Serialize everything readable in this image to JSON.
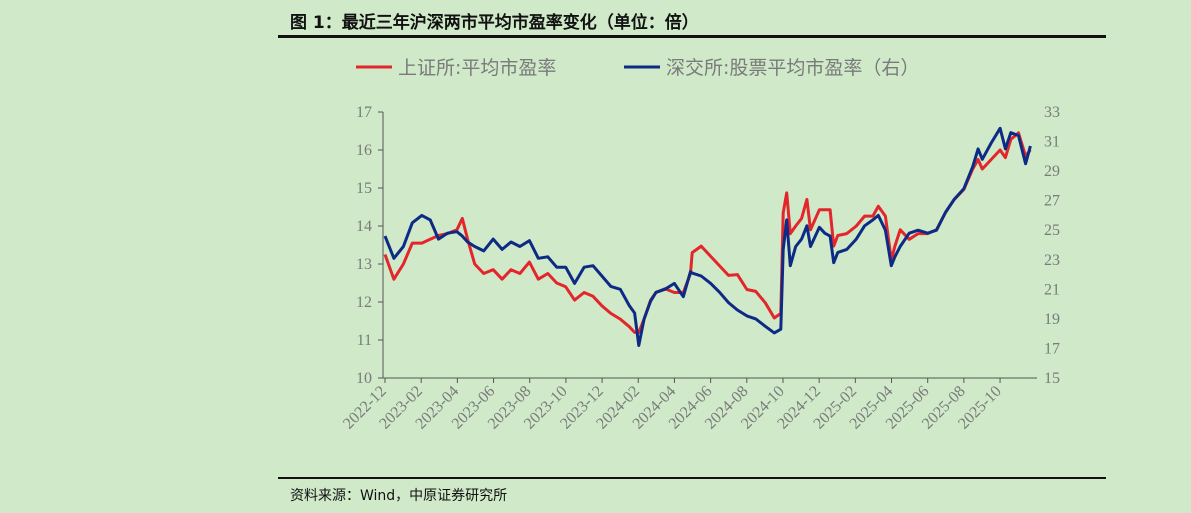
{
  "title": "图 1：最近三年沪深两市平均市盈率变化（单位：倍）",
  "source": "资料来源：Wind，中原证券研究所",
  "colors": {
    "red": "#e3262b",
    "blue": "#0d2b85"
  },
  "chart_data": {
    "type": "line",
    "title": "图 1：最近三年沪深两市平均市盈率变化（单位：倍）",
    "x_tick_labels": [
      "2022-12",
      "2023-02",
      "2023-04",
      "2023-06",
      "2023-08",
      "2023-10",
      "2023-12",
      "2024-02",
      "2024-04",
      "2024-06",
      "2024-08",
      "2024-10",
      "2024-12",
      "2025-02",
      "2025-04",
      "2025-06",
      "2025-08",
      "2025-10"
    ],
    "y_left": {
      "range": [
        10,
        17
      ],
      "ticks": [
        "10",
        "11",
        "12",
        "13",
        "14",
        "15",
        "16",
        "17"
      ]
    },
    "y_right": {
      "range": [
        15,
        33
      ],
      "ticks": [
        "15",
        "17",
        "19",
        "21",
        "23",
        "25",
        "27",
        "29",
        "31",
        "33"
      ]
    },
    "grid": false,
    "legend": "top",
    "x": [
      "2022-12-01",
      "2022-12-16",
      "2023-01-01",
      "2023-01-16",
      "2023-02-01",
      "2023-02-15",
      "2023-03-01",
      "2023-03-16",
      "2023-04-01",
      "2023-04-10",
      "2023-04-19",
      "2023-05-01",
      "2023-05-16",
      "2023-06-01",
      "2023-06-16",
      "2023-07-01",
      "2023-07-16",
      "2023-08-01",
      "2023-08-16",
      "2023-09-01",
      "2023-09-16",
      "2023-10-01",
      "2023-10-16",
      "2023-11-01",
      "2023-11-16",
      "2023-12-01",
      "2023-12-16",
      "2024-01-01",
      "2024-01-16",
      "2024-01-25",
      "2024-02-01",
      "2024-02-10",
      "2024-02-21",
      "2024-03-01",
      "2024-03-16",
      "2024-04-01",
      "2024-04-16",
      "2024-04-28",
      "2024-05-01",
      "2024-05-16",
      "2024-06-01",
      "2024-06-16",
      "2024-07-01",
      "2024-07-16",
      "2024-08-01",
      "2024-08-16",
      "2024-09-01",
      "2024-09-16",
      "2024-09-27",
      "2024-10-01",
      "2024-10-07",
      "2024-10-13",
      "2024-10-22",
      "2024-11-01",
      "2024-11-10",
      "2024-11-16",
      "2024-12-01",
      "2024-12-10",
      "2024-12-19",
      "2024-12-25",
      "2025-01-01",
      "2025-01-16",
      "2025-02-01",
      "2025-02-15",
      "2025-03-01",
      "2025-03-10",
      "2025-03-22",
      "2025-04-01",
      "2025-04-07",
      "2025-04-16",
      "2025-05-01",
      "2025-05-16",
      "2025-06-01",
      "2025-06-16",
      "2025-07-01",
      "2025-07-16",
      "2025-08-01",
      "2025-08-16",
      "2025-08-25",
      "2025-09-01",
      "2025-09-16",
      "2025-10-01",
      "2025-10-10",
      "2025-10-19",
      "2025-11-01",
      "2025-11-13",
      "2025-11-21"
    ],
    "series": [
      {
        "name": "上证所:平均市盈率",
        "axis": "left",
        "color": "#e3262b",
        "values": [
          13.25,
          12.6,
          13.0,
          13.55,
          13.55,
          13.65,
          13.75,
          13.8,
          13.9,
          14.2,
          13.65,
          13.0,
          12.75,
          12.85,
          12.6,
          12.85,
          12.75,
          13.05,
          12.6,
          12.75,
          12.5,
          12.4,
          12.05,
          12.25,
          12.15,
          11.9,
          11.7,
          11.55,
          11.35,
          11.2,
          11.2,
          11.55,
          12.05,
          12.25,
          12.35,
          12.25,
          12.25,
          12.75,
          13.3,
          13.47,
          13.2,
          12.95,
          12.7,
          12.72,
          12.33,
          12.28,
          11.98,
          11.58,
          11.7,
          14.35,
          14.87,
          13.8,
          14.0,
          14.2,
          14.7,
          13.9,
          14.43,
          14.43,
          14.43,
          13.47,
          13.75,
          13.8,
          14.0,
          14.26,
          14.26,
          14.52,
          14.26,
          13.1,
          13.47,
          13.9,
          13.65,
          13.8,
          13.8,
          13.9,
          14.35,
          14.7,
          14.96,
          15.5,
          15.75,
          15.5,
          15.75,
          16.0,
          15.8,
          16.28,
          16.45,
          15.84,
          16.0
        ]
      },
      {
        "name": "深交所:股票平均市盈率（右）",
        "axis": "right",
        "color": "#0d2b85",
        "values": [
          24.6,
          23.1,
          23.9,
          25.5,
          26.0,
          25.7,
          24.4,
          24.8,
          24.9,
          24.6,
          24.2,
          23.9,
          23.6,
          24.4,
          23.7,
          24.2,
          23.9,
          24.3,
          23.1,
          23.2,
          22.5,
          22.5,
          21.4,
          22.5,
          22.6,
          21.9,
          21.2,
          21.0,
          19.9,
          19.4,
          17.2,
          19.0,
          20.2,
          20.8,
          21.0,
          21.4,
          20.5,
          22.2,
          22.1,
          21.9,
          21.4,
          20.8,
          20.1,
          19.6,
          19.2,
          19.0,
          18.5,
          18.05,
          18.3,
          23.7,
          25.7,
          22.6,
          23.9,
          24.4,
          25.3,
          23.9,
          25.2,
          24.8,
          24.6,
          22.8,
          23.5,
          23.7,
          24.4,
          25.3,
          25.7,
          26.0,
          25.0,
          22.6,
          23.2,
          23.9,
          24.8,
          25.0,
          24.8,
          25.0,
          26.2,
          27.1,
          27.8,
          29.3,
          30.5,
          29.8,
          30.9,
          31.9,
          30.5,
          31.6,
          31.4,
          29.5,
          30.7
        ]
      }
    ]
  }
}
